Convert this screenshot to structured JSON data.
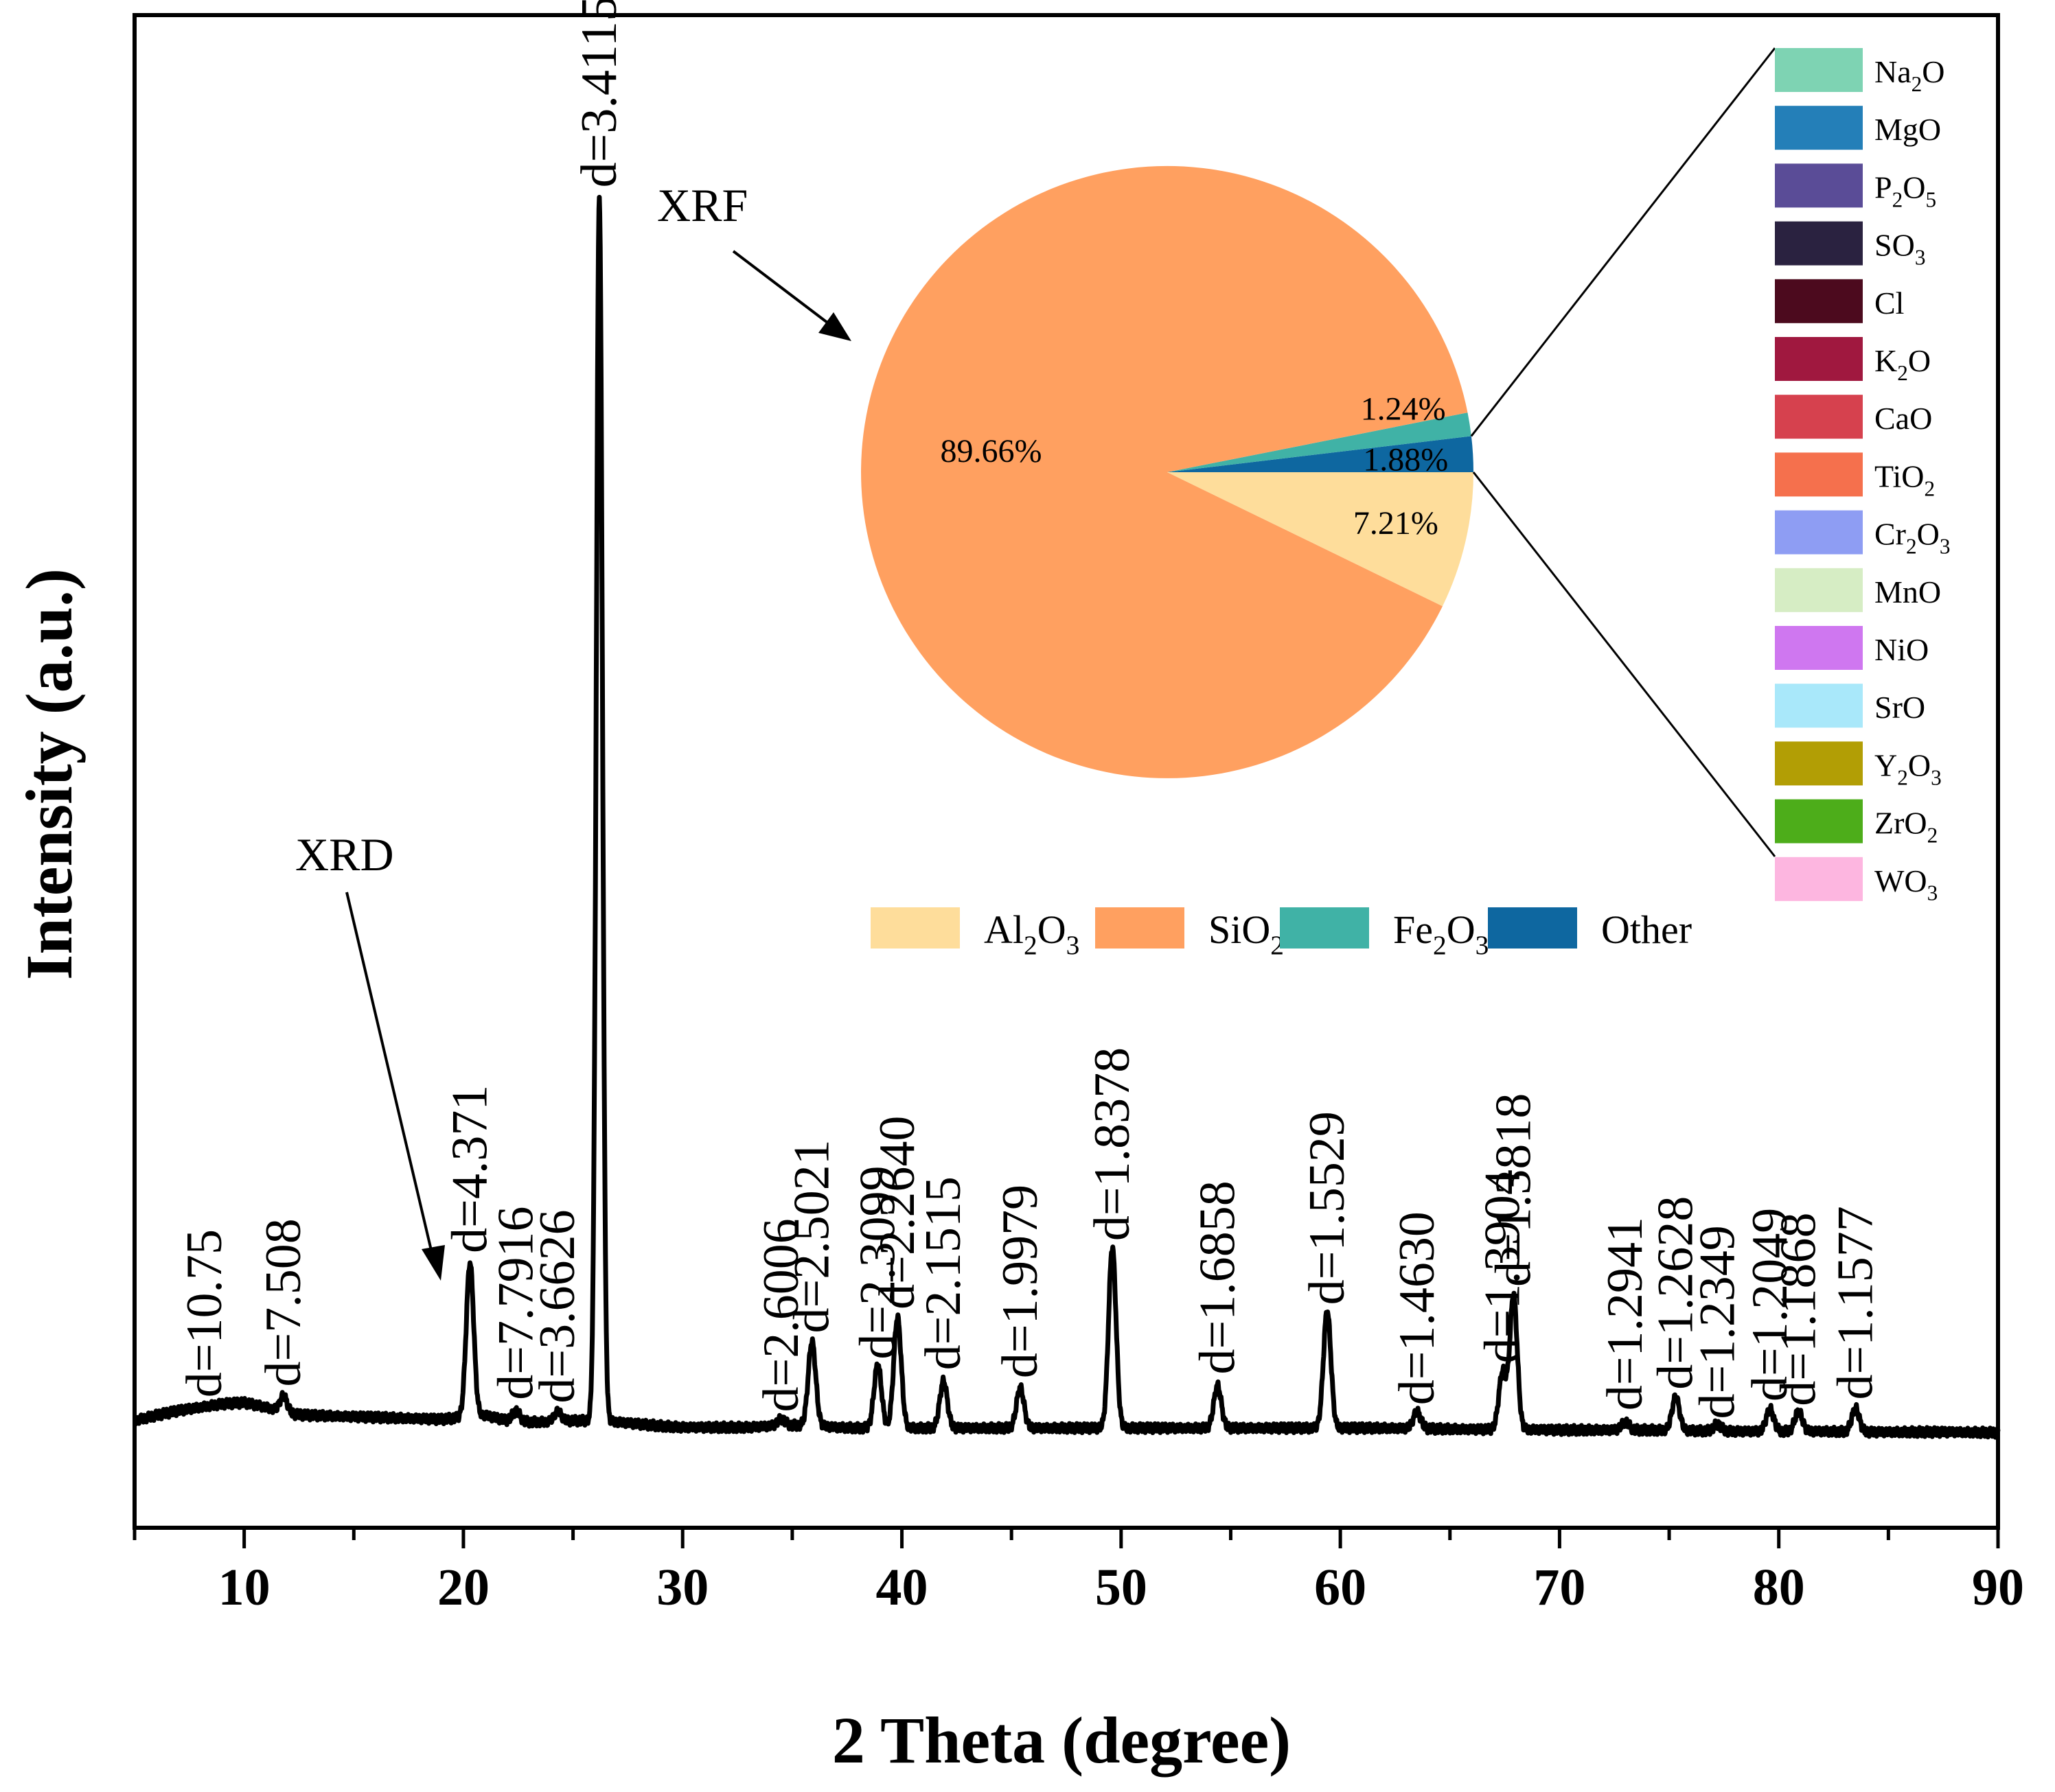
{
  "chart_data": [
    {
      "type": "line",
      "xlabel": "2 Theta (degree)",
      "ylabel": "Intensity (a.u.)",
      "xlim": [
        5,
        90
      ],
      "ylim": [
        -0.18,
        2.08
      ],
      "x_ticks": [
        "10",
        "20",
        "30",
        "40",
        "50",
        "60",
        "70",
        "80",
        "90"
      ],
      "grid": false,
      "annotation": "XRD",
      "series": [
        {
          "values_note": "intensity in arbitrary units",
          "points": [
            [
              5,
              -0.02
            ],
            [
              6,
              -0.012
            ],
            [
              7,
              -0.005
            ],
            [
              8,
              0.0
            ],
            [
              9,
              0.005
            ],
            [
              10,
              0.007
            ],
            [
              11,
              0.0
            ],
            [
              12,
              -0.01
            ],
            [
              13,
              -0.012
            ],
            [
              14,
              -0.013
            ],
            [
              15,
              -0.014
            ],
            [
              16,
              -0.015
            ],
            [
              17,
              -0.016
            ],
            [
              18,
              -0.017
            ],
            [
              19,
              -0.018
            ],
            [
              20,
              -0.015
            ],
            [
              21,
              -0.012
            ],
            [
              22,
              -0.02
            ],
            [
              23,
              -0.022
            ],
            [
              24,
              -0.022
            ],
            [
              25,
              -0.02
            ],
            [
              26,
              -0.02
            ],
            [
              27,
              -0.022
            ],
            [
              28,
              -0.025
            ],
            [
              29,
              -0.028
            ],
            [
              30,
              -0.03
            ],
            [
              31,
              -0.03
            ],
            [
              32,
              -0.03
            ],
            [
              33,
              -0.03
            ],
            [
              34,
              -0.028
            ],
            [
              35,
              -0.027
            ],
            [
              36,
              -0.027
            ],
            [
              37,
              -0.03
            ],
            [
              38,
              -0.031
            ],
            [
              39,
              -0.031
            ],
            [
              40,
              -0.031
            ],
            [
              41,
              -0.031
            ],
            [
              42,
              -0.031
            ],
            [
              43,
              -0.031
            ],
            [
              44,
              -0.031
            ],
            [
              45,
              -0.031
            ],
            [
              46,
              -0.031
            ],
            [
              47,
              -0.031
            ],
            [
              48,
              -0.031
            ],
            [
              49,
              -0.031
            ],
            [
              50,
              -0.031
            ],
            [
              52,
              -0.031
            ],
            [
              54,
              -0.031
            ],
            [
              56,
              -0.031
            ],
            [
              58,
              -0.031
            ],
            [
              60,
              -0.031
            ],
            [
              62,
              -0.031
            ],
            [
              64,
              -0.032
            ],
            [
              66,
              -0.033
            ],
            [
              68,
              -0.033
            ],
            [
              70,
              -0.034
            ],
            [
              72,
              -0.034
            ],
            [
              74,
              -0.034
            ],
            [
              76,
              -0.035
            ],
            [
              78,
              -0.036
            ],
            [
              80,
              -0.036
            ],
            [
              82,
              -0.036
            ],
            [
              84,
              -0.037
            ],
            [
              86,
              -0.037
            ],
            [
              88,
              -0.037
            ],
            [
              90,
              -0.038
            ]
          ],
          "peaks": [
            {
              "x": 8.2,
              "height": 0.0,
              "label": "d=10.75"
            },
            {
              "x": 11.8,
              "height": 0.025,
              "label": "d=7.508"
            },
            {
              "x": 20.3,
              "height": 0.23,
              "label": "d=4.371"
            },
            {
              "x": 22.4,
              "height": 0.015,
              "label": "d=7.7916"
            },
            {
              "x": 24.3,
              "height": 0.015,
              "label": "d=3.6626"
            },
            {
              "x": 26.2,
              "height": 1.83,
              "label": "d=3.4115"
            },
            {
              "x": 34.5,
              "height": 0.01,
              "label": "d=2.6006"
            },
            {
              "x": 35.9,
              "height": 0.125,
              "label": "d=2.5021"
            },
            {
              "x": 38.9,
              "height": 0.095,
              "label": "d=2.3099"
            },
            {
              "x": 39.8,
              "height": 0.165,
              "label": "d=2.2640"
            },
            {
              "x": 41.9,
              "height": 0.07,
              "label": "d=2.1515"
            },
            {
              "x": 45.4,
              "height": 0.06,
              "label": "d=1.9979"
            },
            {
              "x": 49.6,
              "height": 0.27,
              "label": "d=1.8378"
            },
            {
              "x": 54.4,
              "height": 0.063,
              "label": "d=1.6858"
            },
            {
              "x": 59.4,
              "height": 0.175,
              "label": "d=1.5529"
            },
            {
              "x": 63.5,
              "height": 0.025,
              "label": "d=1.4630"
            },
            {
              "x": 67.4,
              "height": 0.085,
              "label": "d=1.3904"
            },
            {
              "x": 67.9,
              "height": 0.2,
              "label": "d=1.3818"
            },
            {
              "x": 73.0,
              "height": 0.012,
              "label": "d=1.2941"
            },
            {
              "x": 75.3,
              "height": 0.05,
              "label": "d=1.2628"
            },
            {
              "x": 77.2,
              "height": 0.01,
              "label": "d=1.2349"
            },
            {
              "x": 79.6,
              "height": 0.033,
              "label": "d=1.2049"
            },
            {
              "x": 80.9,
              "height": 0.03,
              "label": "d=1.1868"
            },
            {
              "x": 83.5,
              "height": 0.035,
              "label": "d=1.1577"
            }
          ]
        }
      ]
    },
    {
      "type": "pie",
      "annotation": "XRF",
      "slices": [
        {
          "name": "Al2O3",
          "value": 7.21,
          "label": "7.21%",
          "color": "#FEDD9B"
        },
        {
          "name": "SiO2",
          "value": 89.66,
          "label": "89.66%",
          "color": "#FFA060"
        },
        {
          "name": "Fe2O3",
          "value": 1.24,
          "label": "1.24%",
          "color": "#40B2A6"
        },
        {
          "name": "Other",
          "value": 1.88,
          "label": "1.88%",
          "color": "#0E67A0"
        }
      ],
      "legend": [
        {
          "base": "Al",
          "sub1": "2",
          "mid": "O",
          "sub2": "3",
          "color": "#FEDD9B"
        },
        {
          "base": "Si",
          "sub1": "",
          "mid": "O",
          "sub2": "2",
          "color": "#FFA060"
        },
        {
          "base": "Fe",
          "sub1": "2",
          "mid": "O",
          "sub2": "3",
          "color": "#40B2A6"
        },
        {
          "base": "Other",
          "sub1": "",
          "mid": "",
          "sub2": "",
          "color": "#0E67A0"
        }
      ],
      "other_breakdown": [
        {
          "base": "Na",
          "sub1": "2",
          "mid": "O",
          "sub2": "",
          "color": "#7ED3B3"
        },
        {
          "base": "MgO",
          "sub1": "",
          "mid": "",
          "sub2": "",
          "color": "#247FB8"
        },
        {
          "base": "P",
          "sub1": "2",
          "mid": "O",
          "sub2": "5",
          "color": "#5A4C97"
        },
        {
          "base": "SO",
          "sub1": "3",
          "mid": "",
          "sub2": "",
          "color": "#2A2240"
        },
        {
          "base": "Cl",
          "sub1": "",
          "mid": "",
          "sub2": "",
          "color": "#4C0A1E"
        },
        {
          "base": "K",
          "sub1": "2",
          "mid": "O",
          "sub2": "",
          "color": "#A0183F"
        },
        {
          "base": "CaO",
          "sub1": "",
          "mid": "",
          "sub2": "",
          "color": "#D6414E"
        },
        {
          "base": "TiO",
          "sub1": "2",
          "mid": "",
          "sub2": "",
          "color": "#F5704D"
        },
        {
          "base": "Cr",
          "sub1": "2",
          "mid": "O",
          "sub2": "3",
          "color": "#8E9DF3"
        },
        {
          "base": "MnO",
          "sub1": "",
          "mid": "",
          "sub2": "",
          "color": "#D6EDC4"
        },
        {
          "base": "NiO",
          "sub1": "",
          "mid": "",
          "sub2": "",
          "color": "#CF77F0"
        },
        {
          "base": "SrO",
          "sub1": "",
          "mid": "",
          "sub2": "",
          "color": "#A9E8FA"
        },
        {
          "base": "Y",
          "sub1": "2",
          "mid": "O",
          "sub2": "3",
          "color": "#B29E05"
        },
        {
          "base": "ZrO",
          "sub1": "2",
          "mid": "",
          "sub2": "",
          "color": "#4DAD1A"
        },
        {
          "base": "WO",
          "sub1": "3",
          "mid": "",
          "sub2": "",
          "color": "#FDB6E0"
        }
      ]
    }
  ]
}
